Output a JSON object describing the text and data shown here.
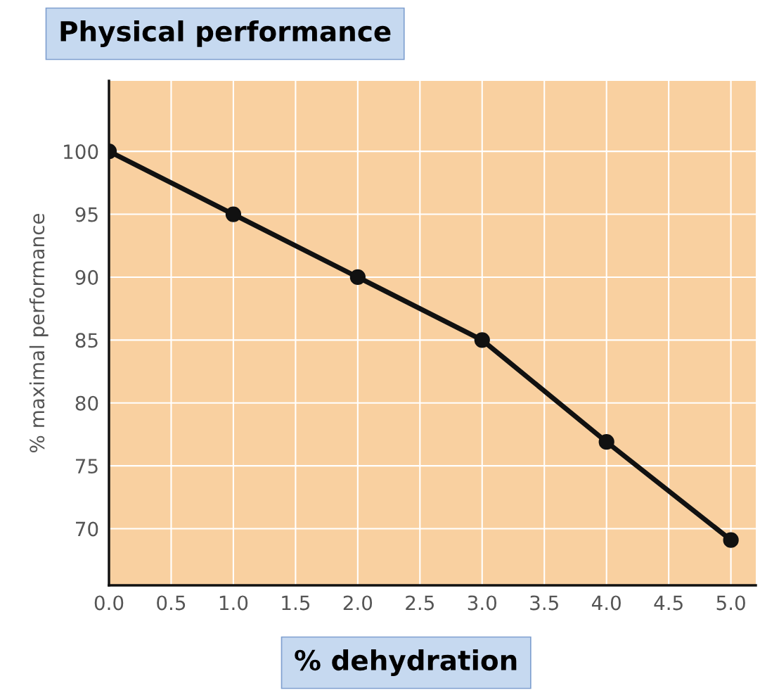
{
  "chart_data": {
    "type": "line",
    "title": "Physical performance",
    "xlabel": "% dehydration",
    "ylabel": "% maximal performance",
    "x": [
      0,
      1,
      2,
      3,
      4,
      5
    ],
    "series": [
      {
        "color": "#111111",
        "values": [
          100,
          95,
          90,
          85,
          76.9,
          69.1
        ]
      }
    ],
    "xlim": [
      0,
      5.2
    ],
    "xticks": [
      {
        "value": 0,
        "label": "0.0"
      },
      {
        "value": 0.5,
        "label": "0.5"
      },
      {
        "value": 1,
        "label": "1.0"
      },
      {
        "value": 1.5,
        "label": "1.5"
      },
      {
        "value": 2,
        "label": "2.0"
      },
      {
        "value": 2.5,
        "label": "2.5"
      },
      {
        "value": 3,
        "label": "3.0"
      },
      {
        "value": 3.5,
        "label": "3.5"
      },
      {
        "value": 4,
        "label": "4.0"
      },
      {
        "value": 4.5,
        "label": "4.5"
      },
      {
        "value": 5,
        "label": "5.0"
      }
    ],
    "ylim": [
      65.5,
      105.6
    ],
    "yticks": [
      70,
      75,
      80,
      85,
      90,
      95,
      100
    ],
    "grid": true,
    "marker": "circle",
    "line_style": "solid"
  }
}
